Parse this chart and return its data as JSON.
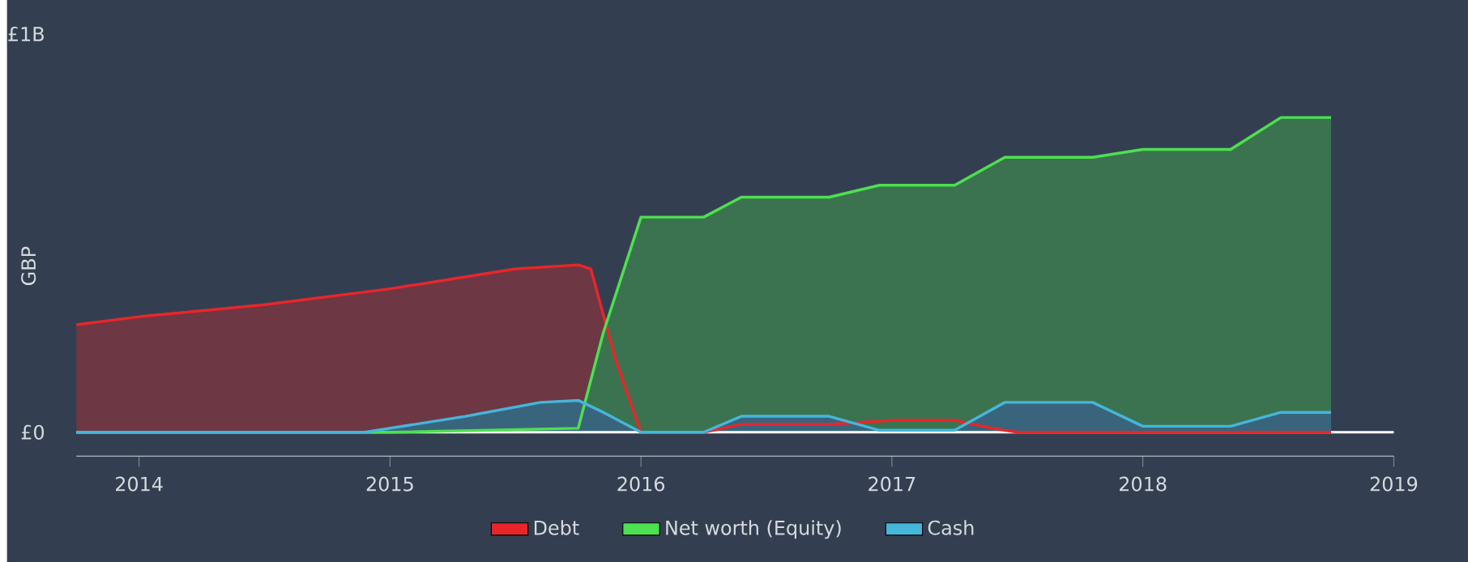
{
  "chart_data": {
    "type": "area",
    "ylabel": "GBP",
    "xlim": [
      2013.75,
      2019
    ],
    "xticks": [
      2014,
      2015,
      2016,
      2017,
      2018,
      2019
    ],
    "ylim": [
      -0.06,
      1
    ],
    "yticks": [
      {
        "value": 0,
        "label": "£0"
      },
      {
        "value": 1,
        "label": "£1B"
      }
    ],
    "legend": "bottom",
    "grid": false,
    "line_style": "solid",
    "marker": "none",
    "ref_lines": [
      {
        "axis": "y",
        "value": 0,
        "color": "#ffffff"
      }
    ],
    "series": [
      {
        "name": "Debt",
        "color": "#e8262a",
        "x": [
          2013.75,
          2014.0,
          2014.5,
          2015.0,
          2015.5,
          2015.75,
          2015.8,
          2015.9,
          2016.0,
          2016.25,
          2016.4,
          2016.75,
          2017.0,
          2017.25,
          2017.4,
          2017.5,
          2018.75
        ],
        "values": [
          0.27,
          0.29,
          0.32,
          0.36,
          0.41,
          0.42,
          0.41,
          0.18,
          0.0,
          0.0,
          0.02,
          0.02,
          0.03,
          0.03,
          0.01,
          0.0,
          0.0
        ]
      },
      {
        "name": "Net worth (Equity)",
        "color": "#4de04f",
        "x": [
          2013.75,
          2015.0,
          2015.75,
          2015.85,
          2016.0,
          2016.25,
          2016.4,
          2016.75,
          2016.95,
          2017.25,
          2017.45,
          2017.8,
          2018.0,
          2018.35,
          2018.55,
          2018.75
        ],
        "values": [
          0.0,
          0.0,
          0.01,
          0.25,
          0.54,
          0.54,
          0.59,
          0.59,
          0.62,
          0.62,
          0.69,
          0.69,
          0.71,
          0.71,
          0.79,
          0.79
        ]
      },
      {
        "name": "Cash",
        "color": "#45b6da",
        "x": [
          2013.75,
          2014.9,
          2015.0,
          2015.3,
          2015.6,
          2015.75,
          2015.85,
          2016.0,
          2016.25,
          2016.4,
          2016.75,
          2016.95,
          2017.25,
          2017.45,
          2017.8,
          2018.0,
          2018.35,
          2018.55,
          2018.75
        ],
        "values": [
          0.0,
          0.0,
          0.01,
          0.04,
          0.075,
          0.08,
          0.05,
          0.0,
          0.0,
          0.04,
          0.04,
          0.005,
          0.005,
          0.075,
          0.075,
          0.015,
          0.015,
          0.05,
          0.05
        ]
      }
    ]
  }
}
